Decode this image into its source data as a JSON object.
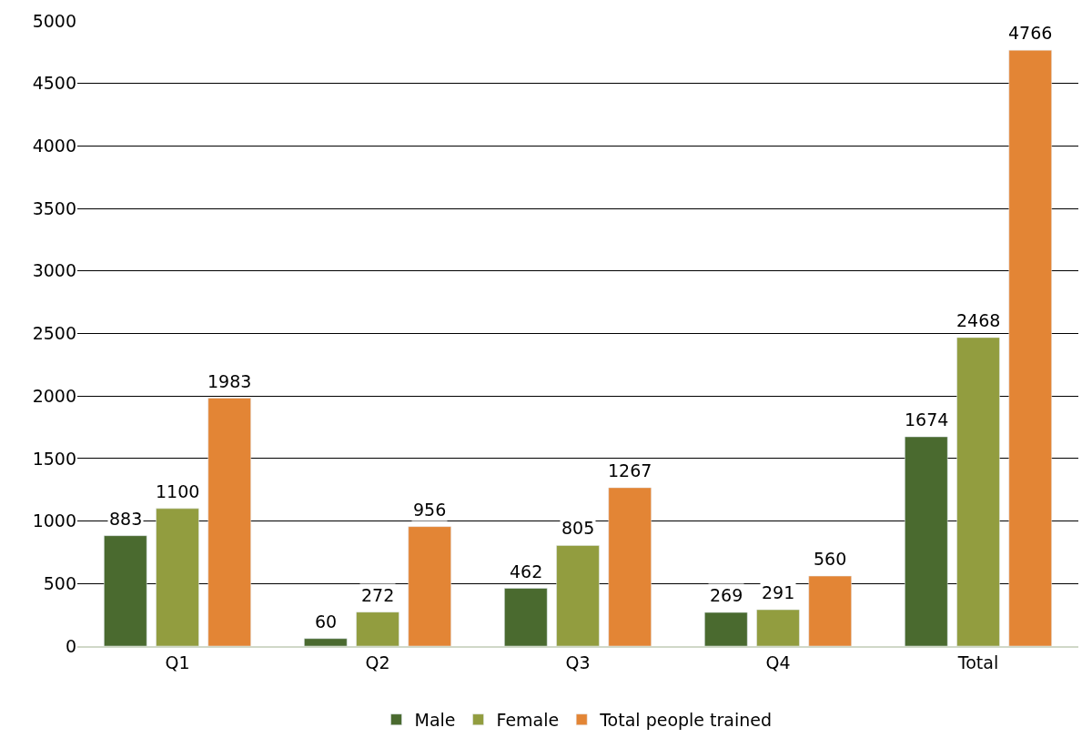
{
  "chart_data": {
    "type": "bar",
    "categories": [
      "Q1",
      "Q2",
      "Q3",
      "Q4",
      "Total"
    ],
    "series": [
      {
        "name": "Male",
        "color": "#4a6a2f",
        "values": [
          883,
          60,
          462,
          269,
          1674
        ]
      },
      {
        "name": "Female",
        "color": "#929d3f",
        "values": [
          1100,
          272,
          805,
          291,
          2468
        ]
      },
      {
        "name": "Total people trained",
        "color": "#e38535",
        "values": [
          1983,
          956,
          1267,
          560,
          4766
        ]
      }
    ],
    "ylim": [
      0,
      5000
    ],
    "yticks": [
      0,
      500,
      1000,
      1500,
      2000,
      2500,
      3000,
      3500,
      4000,
      4500,
      5000
    ],
    "grid": "y",
    "legend": "bottom",
    "data_labels": true
  }
}
